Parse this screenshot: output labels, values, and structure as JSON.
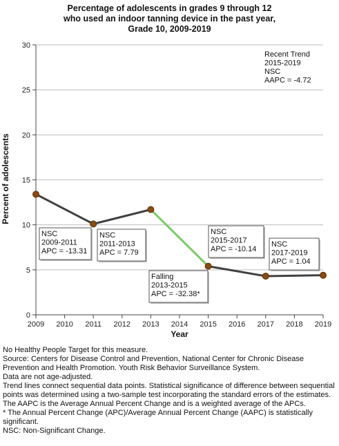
{
  "chart_data": {
    "type": "line",
    "title_lines": [
      "Percentage of adolescents in grades 9 through 12",
      "who used an indoor tanning device in the past year,",
      "Grade 10,  2009-2019"
    ],
    "xlabel": "Year",
    "ylabel": "Percent of adolescents",
    "xlim": [
      2009,
      2019
    ],
    "ylim": [
      0,
      30
    ],
    "x_ticks": [
      2009,
      2010,
      2011,
      2012,
      2013,
      2014,
      2015,
      2016,
      2017,
      2018,
      2019
    ],
    "y_ticks": [
      0,
      5,
      10,
      15,
      20,
      25,
      30
    ],
    "grid": "horizontal",
    "series": [
      {
        "x": [
          2009,
          2011,
          2013,
          2015,
          2017,
          2019
        ],
        "y": [
          13.4,
          10.1,
          11.7,
          5.4,
          4.3,
          4.4
        ],
        "line_color": "#404040",
        "marker_color": "#8B4A0F",
        "segment_colors": [
          "#404040",
          "#404040",
          "#77CC66",
          "#404040",
          "#404040"
        ]
      }
    ],
    "annotations": [
      {
        "lines": [
          "NSC",
          "2009-2011",
          "APC = -13.31"
        ]
      },
      {
        "lines": [
          "NSC",
          "2011-2013",
          "APC =  7.79"
        ]
      },
      {
        "lines": [
          "Falling",
          "2013-2015",
          "APC = -32.38*"
        ]
      },
      {
        "lines": [
          "NSC",
          "2015-2017",
          "APC = -10.14"
        ]
      },
      {
        "lines": [
          "NSC",
          "2017-2019",
          "APC =  1.04"
        ]
      },
      {
        "lines": [
          "Recent Trend",
          "2015-2019",
          "NSC",
          "AAPC = -4.72"
        ]
      }
    ]
  },
  "notes": [
    "No Healthy People Target for this measure.",
    "Source: Centers for Disease Control and Prevention, National Center for Chronic Disease Prevention and Health Promotion. Youth Risk Behavior Surveillance System.",
    "Data are not age-adjusted.",
    "Trend lines connect sequential data points. Statistical significance of difference between sequential points was determined using a two-sample test incorporating the standard errors of the estimates.",
    "The AAPC is the Average Annual Percent Change and is a weighted average of the APCs.",
    "* The Annual Percent Change (APC)/Average Annual Percent Change (AAPC) is statistically significant.",
    "NSC: Non-Significant Change."
  ]
}
